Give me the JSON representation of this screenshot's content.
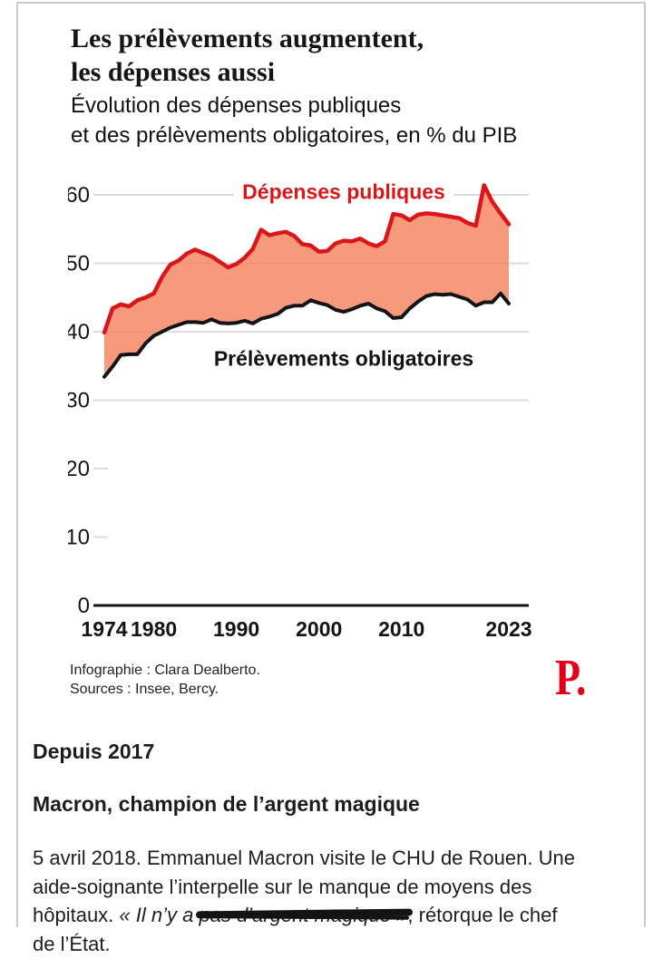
{
  "infographic": {
    "title": "Les prélèvements augmentent,\nles dépenses aussi",
    "subtitle": "Évolution des dépenses publiques\net des prélèvements obligatoires, en % du PIB",
    "credits_line1": "Infographie : Clara Dealberto.",
    "credits_line2": "Sources : Insee, Bercy.",
    "logo": "P.",
    "logo_color": "#e2001a"
  },
  "chart_data": {
    "type": "area",
    "title": "Les prélèvements augmentent, les dépenses aussi",
    "subtitle": "Évolution des dépenses publiques et des prélèvements obligatoires, en % du PIB",
    "unit": "% du PIB",
    "x": [
      1974,
      1975,
      1976,
      1977,
      1978,
      1979,
      1980,
      1981,
      1982,
      1983,
      1984,
      1985,
      1986,
      1987,
      1988,
      1989,
      1990,
      1991,
      1992,
      1993,
      1994,
      1995,
      1996,
      1997,
      1998,
      1999,
      2000,
      2001,
      2002,
      2003,
      2004,
      2005,
      2006,
      2007,
      2008,
      2009,
      2010,
      2011,
      2012,
      2013,
      2014,
      2015,
      2016,
      2017,
      2018,
      2019,
      2020,
      2021,
      2022,
      2023
    ],
    "series": [
      {
        "name": "Dépenses publiques",
        "color": "#d9161a",
        "values": [
          39.9,
          43.4,
          44.0,
          43.7,
          44.6,
          45.0,
          45.6,
          48.0,
          49.8,
          50.4,
          51.4,
          52.0,
          51.5,
          51.0,
          50.2,
          49.4,
          49.9,
          50.8,
          52.1,
          54.9,
          54.1,
          54.4,
          54.6,
          54.0,
          52.8,
          52.6,
          51.7,
          51.8,
          52.9,
          53.3,
          53.2,
          53.6,
          52.9,
          52.5,
          53.2,
          57.2,
          57.0,
          56.3,
          57.1,
          57.3,
          57.2,
          57.0,
          56.8,
          56.6,
          55.9,
          55.5,
          61.4,
          59.0,
          57.3,
          55.7
        ]
      },
      {
        "name": "Prélèvements obligatoires",
        "color": "#141414",
        "values": [
          33.4,
          34.9,
          36.6,
          36.7,
          36.7,
          38.3,
          39.4,
          40.0,
          40.6,
          41.0,
          41.4,
          41.4,
          41.3,
          41.8,
          41.3,
          41.2,
          41.3,
          41.6,
          41.2,
          41.9,
          42.2,
          42.6,
          43.5,
          43.8,
          43.8,
          44.6,
          44.2,
          43.9,
          43.2,
          42.9,
          43.3,
          43.8,
          44.1,
          43.4,
          43.0,
          42.0,
          42.1,
          43.4,
          44.4,
          45.2,
          45.5,
          45.4,
          45.5,
          45.1,
          44.7,
          43.8,
          44.3,
          44.3,
          45.6,
          44.1
        ]
      }
    ],
    "fill_between": {
      "upper": "Dépenses publiques",
      "lower": "Prélèvements obligatoires",
      "color": "#f68a6a",
      "opacity": 0.87
    },
    "xlim": [
      1974,
      2023
    ],
    "ylim": [
      0,
      63
    ],
    "y_ticks": [
      0,
      10,
      20,
      30,
      40,
      50,
      60
    ],
    "y_gridlines_full": [
      30,
      40,
      50,
      60
    ],
    "y_ticks_short": [
      10,
      20
    ],
    "x_tick_labels": [
      1974,
      1980,
      1990,
      2000,
      2010,
      2023
    ],
    "grid_color": "#dcdcdc",
    "axis_color": "#141414",
    "legend_position": "inline-labels",
    "grid": "horizontal-only"
  },
  "article": {
    "section_heading": "Depuis 2017",
    "subheading": "Macron, champion de l’argent magique",
    "paragraph": {
      "line1": "5 avril 2018. Emmanuel Macron visite le CHU de Rouen. Une",
      "line2": "aide-soignante l’interpelle sur le manque de moyens des",
      "line3_pre": "hôpitaux. ",
      "line3_quote": "« Il n’y a ",
      "line3_struck": "pas d’argent magique »",
      "line3_after": ", rétorque le chef",
      "line4": "de l’État."
    }
  }
}
